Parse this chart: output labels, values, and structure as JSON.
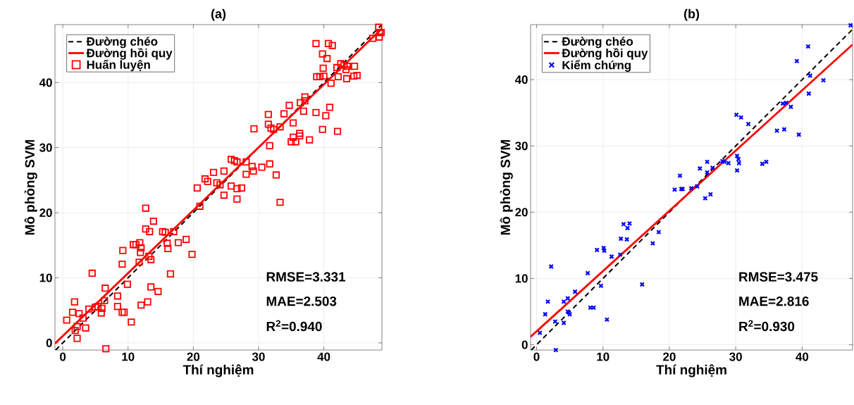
{
  "chart_data": [
    {
      "type": "scatter",
      "title": "(a)",
      "xlabel": "Thí nghiệm",
      "ylabel": "Mô phỏng SVM",
      "xlim": [
        -1.2,
        48.9
      ],
      "ylim": [
        -1.1,
        48.9
      ],
      "xticks": [
        0,
        10,
        20,
        30,
        40
      ],
      "yticks": [
        0,
        10,
        20,
        30,
        40
      ],
      "grid": true,
      "legend": "top left",
      "annotations": [
        "RMSE=3.331",
        "MAE=2.503",
        "R$^{2}$=0.940"
      ],
      "series": [
        {
          "name": "Đường chéo",
          "type": "line",
          "line_style": "dashed",
          "marker": "none",
          "color": "#000000",
          "x": [
            -1.1,
            48.9
          ],
          "values": [
            -1.1,
            48.9
          ]
        },
        {
          "name": "Đường hồi quy",
          "type": "line",
          "line_style": "solid",
          "marker": "none",
          "color": "#ff0000",
          "x": [
            -1.2,
            48.9
          ],
          "values": [
            -0.1,
            48.3
          ]
        },
        {
          "name": "Huấn luyện",
          "marker": "square",
          "color": "#ff0000",
          "x": [
            0.6,
            1.5,
            1.8,
            2.5,
            3.1,
            2.2,
            1.9,
            2.2,
            3.5,
            4.0,
            4.5,
            5.0,
            5.4,
            5.9,
            6.0,
            6.4,
            6.5,
            6.6,
            8.4,
            8.4,
            9.1,
            9.4,
            9.1,
            9.2,
            9.9,
            10.5,
            10.8,
            11.2,
            11.8,
            12.0,
            11.9,
            11.7,
            12.7,
            12.7,
            13.3,
            13.9,
            13.2,
            13.5,
            12.0,
            13.0,
            13.5,
            14.6,
            15.3,
            15.7,
            16.0,
            16.1,
            16.5,
            17.0,
            17.7,
            18.9,
            19.8,
            20.6,
            21.0,
            21.8,
            22.2,
            23.1,
            24.7,
            25.8,
            26.3,
            26.7,
            23.6,
            24.1,
            24.7,
            25.8,
            26.7,
            26.7,
            27.4,
            28.1,
            28.1,
            29.0,
            29.2,
            30.5,
            31.7,
            32.7,
            33.3,
            31.7,
            29.3,
            31.5,
            31.5,
            31.9,
            32.3,
            33.3,
            33.9,
            34.7,
            35.3,
            35.0,
            35.7,
            35.3,
            36.3,
            36.3,
            37.8,
            36.4,
            37.1,
            37.1,
            36.9,
            38.8,
            40.3,
            40.9,
            39.8,
            42.1,
            38.8,
            40.7,
            41.3,
            39.8,
            40.5,
            39.9,
            38.9,
            39.4,
            40.0,
            41.1,
            42.0,
            42.2,
            42.6,
            43.1,
            43.6,
            43.4,
            44.7,
            43.5,
            44.6,
            45.1,
            47.5,
            48.4,
            48.6,
            48.5,
            48.8
          ],
          "values": [
            3.5,
            4.7,
            6.3,
            4.5,
            3.8,
            2.5,
            1.9,
            0.7,
            2.3,
            5.2,
            10.7,
            5.5,
            5.6,
            4.6,
            5.3,
            6.5,
            8.4,
            -0.9,
            7.2,
            5.6,
            4.7,
            4.7,
            12.1,
            14.2,
            9.0,
            3.2,
            15.1,
            15.1,
            15.4,
            14.6,
            13.9,
            12.4,
            20.7,
            17.5,
            17.1,
            18.7,
            13.3,
            12.8,
            5.8,
            6.3,
            8.6,
            7.9,
            17.1,
            17.0,
            15.3,
            14.5,
            10.6,
            17.1,
            15.4,
            15.9,
            13.6,
            23.8,
            21.0,
            25.2,
            24.8,
            26.2,
            26.4,
            28.2,
            28.0,
            27.8,
            24.6,
            24.3,
            22.7,
            24.1,
            23.7,
            22.1,
            23.8,
            25.9,
            27.8,
            27.1,
            26.4,
            27.0,
            27.5,
            25.8,
            21.6,
            30.3,
            32.9,
            35.1,
            33.6,
            33.0,
            32.8,
            33.2,
            35.2,
            36.5,
            33.8,
            30.9,
            30.9,
            31.6,
            31.8,
            32.2,
            31.2,
            36.9,
            37.8,
            37.2,
            35.6,
            35.4,
            34.9,
            36.2,
            32.8,
            32.5,
            46.0,
            46.0,
            45.7,
            44.4,
            43.7,
            42.2,
            40.9,
            40.9,
            41.0,
            39.9,
            42.3,
            40.9,
            42.9,
            42.7,
            42.5,
            42.0,
            42.5,
            40.6,
            41.0,
            41.1,
            46.8,
            48.5,
            47.7,
            47.0,
            47.7
          ]
        }
      ]
    },
    {
      "type": "scatter",
      "title": "(b)",
      "xlabel": "Thí nghiệm",
      "ylabel": "Mô phỏng SVM",
      "xlim": [
        -0.9,
        47.6
      ],
      "ylim": [
        -0.8,
        48.3
      ],
      "xticks": [
        0,
        10,
        20,
        30,
        40
      ],
      "yticks": [
        0,
        10,
        20,
        30,
        40
      ],
      "grid": true,
      "legend": "top left",
      "annotations": [
        "RMSE=3.475",
        "MAE=2.816",
        "R$^{2}$=0.930"
      ],
      "series": [
        {
          "name": "Đường chéo",
          "type": "line",
          "line_style": "dashed",
          "marker": "none",
          "color": "#000000",
          "x": [
            -0.8,
            47.6
          ],
          "values": [
            -0.8,
            47.6
          ]
        },
        {
          "name": "Đường hồi quy",
          "type": "line",
          "line_style": "solid",
          "marker": "none",
          "color": "#ff0000",
          "x": [
            -0.9,
            47.6
          ],
          "values": [
            1.2,
            45.3
          ]
        },
        {
          "name": "Kiểm chứng",
          "marker": "cross",
          "color": "#0000ff",
          "x": [
            0.5,
            2.9,
            1.3,
            1.7,
            2.2,
            2.8,
            4.1,
            4.1,
            4.7,
            4.7,
            5.0,
            5.8,
            7.7,
            8.1,
            8.6,
            9.1,
            9.7,
            10.1,
            10.2,
            10.6,
            11.3,
            12.6,
            12.7,
            13.6,
            13.1,
            14.0,
            13.7,
            15.9,
            17.5,
            18.4,
            20.8,
            21.6,
            21.8,
            22.0,
            23.3,
            24.2,
            25.4,
            26.2,
            24.6,
            25.7,
            25.7,
            26.5,
            28.0,
            28.3,
            28.9,
            30.2,
            30.4,
            30.5,
            30.2,
            30.1,
            30.8,
            31.9,
            34.0,
            34.6,
            36.2,
            37.3,
            37.1,
            37.6,
            38.3,
            39.5,
            39.2,
            40.9,
            41.2,
            41.0,
            43.2,
            47.3
          ],
          "values": [
            1.8,
            -0.8,
            4.6,
            6.5,
            11.8,
            3.5,
            3.3,
            6.5,
            7.0,
            5.0,
            4.6,
            8.0,
            10.8,
            5.6,
            5.6,
            14.3,
            8.9,
            14.6,
            14.2,
            3.8,
            13.3,
            13.6,
            16.0,
            15.9,
            18.2,
            18.3,
            17.6,
            9.1,
            15.3,
            17.0,
            23.4,
            25.5,
            23.5,
            23.5,
            23.6,
            23.9,
            22.1,
            22.7,
            26.6,
            26.0,
            27.6,
            26.7,
            27.7,
            27.6,
            27.4,
            28.5,
            28.0,
            27.4,
            26.3,
            34.7,
            34.3,
            33.3,
            27.3,
            27.6,
            32.3,
            32.5,
            36.4,
            36.5,
            35.9,
            31.7,
            42.8,
            45.0,
            40.6,
            37.9,
            39.9,
            48.2
          ]
        }
      ]
    }
  ]
}
